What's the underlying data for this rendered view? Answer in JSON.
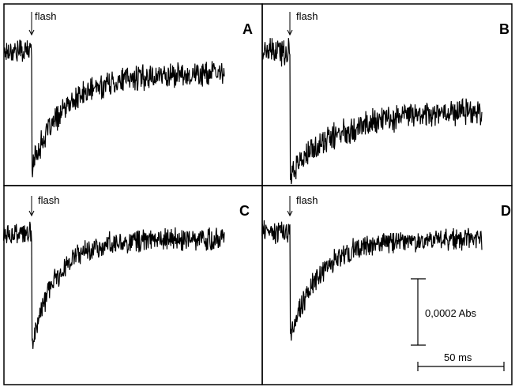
{
  "chart_data": [
    {
      "type": "line",
      "panel_label": "A",
      "annotation": "flash",
      "x_unit": "ms",
      "y_unit": "Abs",
      "flash_time_ms": 0,
      "baseline": 0,
      "min_value": -0.00061,
      "recovery_plateau": -0.00012,
      "recovery_tau_ms": 20,
      "noise_amplitude": 5.5e-05,
      "series": [
        {
          "x": [
            -16,
            0,
            1,
            5,
            10,
            20,
            40,
            60,
            80,
            110
          ],
          "y": [
            0,
            0,
            -0.00061,
            -0.00057,
            -0.00043,
            -0.0003,
            -0.00018,
            -0.00014,
            -0.00012,
            -0.00012
          ]
        }
      ]
    },
    {
      "type": "line",
      "panel_label": "B",
      "annotation": "flash",
      "x_unit": "ms",
      "y_unit": "Abs",
      "flash_time_ms": 0,
      "baseline": 0,
      "min_value": -0.0006,
      "recovery_plateau": -0.00028,
      "recovery_tau_ms": 30,
      "noise_amplitude": 5.5e-05,
      "series": [
        {
          "x": [
            -16,
            0,
            1,
            5,
            10,
            20,
            40,
            60,
            80,
            110
          ],
          "y": [
            0,
            0,
            -0.0006,
            -0.00057,
            -0.00051,
            -0.00043,
            -0.00036,
            -0.00032,
            -0.0003,
            -0.00028
          ]
        }
      ]
    },
    {
      "type": "line",
      "panel_label": "C",
      "annotation": "flash",
      "x_unit": "ms",
      "y_unit": "Abs",
      "flash_time_ms": 0,
      "baseline": 0,
      "min_value": -0.0007,
      "recovery_plateau": -3e-05,
      "recovery_tau_ms": 14,
      "noise_amplitude": 6e-05,
      "series": [
        {
          "x": [
            -16,
            0,
            1,
            5,
            10,
            20,
            40,
            60,
            80,
            110
          ],
          "y": [
            0,
            0,
            -0.0007,
            -0.00059,
            -0.0004,
            -0.00017,
            -5e-05,
            -3e-05,
            -3e-05,
            -3e-05
          ]
        }
      ]
    },
    {
      "type": "line",
      "panel_label": "D",
      "annotation": "flash",
      "x_unit": "ms",
      "y_unit": "Abs",
      "flash_time_ms": 0,
      "baseline": 0,
      "min_value": -0.00062,
      "recovery_plateau": -4e-05,
      "recovery_tau_ms": 17,
      "noise_amplitude": 5.5e-05,
      "series": [
        {
          "x": [
            -16,
            0,
            1,
            5,
            10,
            20,
            40,
            60,
            80,
            110
          ],
          "y": [
            0,
            0,
            -0.00062,
            -0.00054,
            -0.00036,
            -0.00017,
            -6e-05,
            -4e-05,
            -4e-05,
            -4e-05
          ]
        }
      ]
    }
  ],
  "scale_bar": {
    "y_label": "0,0002 Abs",
    "y_value": 0.0002,
    "x_label": "50 ms",
    "x_value": 50
  }
}
